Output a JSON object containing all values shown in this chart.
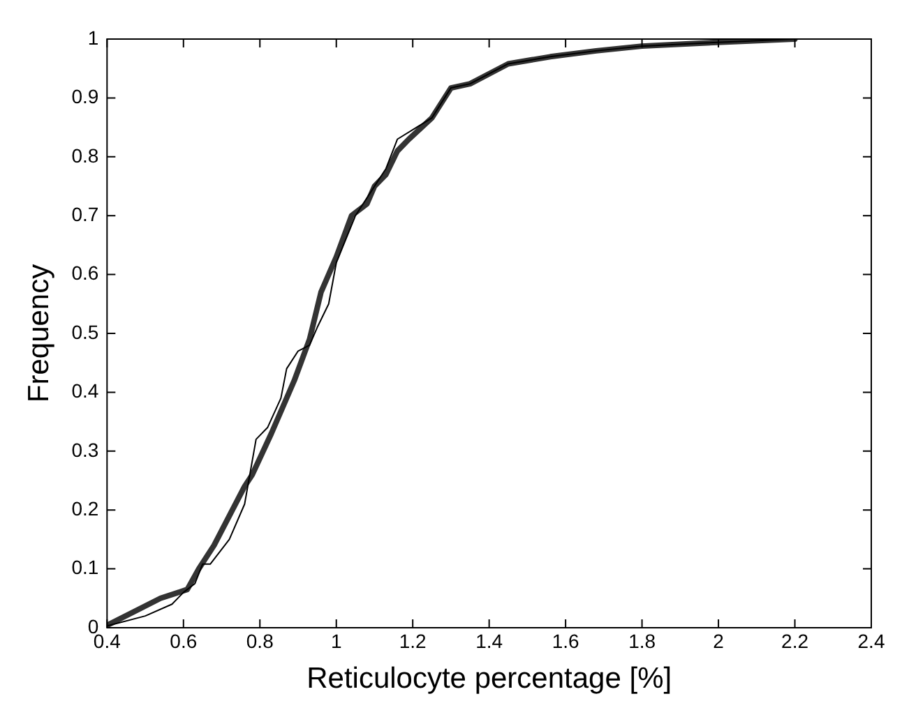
{
  "chart_data": {
    "type": "line",
    "xlabel": "Reticulocyte percentage [%]",
    "ylabel": "Frequency",
    "xlim": [
      0.4,
      2.4
    ],
    "ylim": [
      0,
      1
    ],
    "xticks": [
      0.4,
      0.6,
      0.8,
      1,
      1.2,
      1.4,
      1.6,
      1.8,
      2,
      2.2,
      2.4
    ],
    "yticks": [
      0,
      0.1,
      0.2,
      0.3,
      0.4,
      0.5,
      0.6,
      0.7,
      0.8,
      0.9,
      1
    ],
    "grid": false,
    "legend": false,
    "marker": "none",
    "line_style": "solid",
    "series": [
      {
        "color": "#333333",
        "x": [
          0.4,
          0.54,
          0.61,
          0.64,
          0.68,
          0.76,
          0.78,
          0.83,
          0.89,
          0.93,
          0.96,
          1.0,
          1.04,
          1.08,
          1.1,
          1.13,
          1.16,
          1.19,
          1.25,
          1.3,
          1.35,
          1.45,
          1.56,
          1.68,
          1.8,
          1.95,
          2.2
        ],
        "values": [
          0.004,
          0.05,
          0.065,
          0.1,
          0.14,
          0.24,
          0.26,
          0.33,
          0.42,
          0.49,
          0.57,
          0.63,
          0.7,
          0.72,
          0.75,
          0.77,
          0.81,
          0.83,
          0.866,
          0.917,
          0.924,
          0.958,
          0.97,
          0.98,
          0.988,
          0.993,
          1.0
        ]
      },
      {
        "color": "#000000",
        "x": [
          0.4,
          0.5,
          0.57,
          0.6,
          0.63,
          0.65,
          0.67,
          0.72,
          0.76,
          0.79,
          0.82,
          0.855,
          0.87,
          0.9,
          0.93,
          0.95,
          0.98,
          1.0,
          1.05,
          1.08,
          1.1,
          1.13,
          1.16,
          1.21,
          1.25,
          1.3,
          1.35,
          1.45,
          1.56,
          1.68,
          1.8,
          1.95,
          2.2
        ],
        "values": [
          0.003,
          0.02,
          0.04,
          0.06,
          0.075,
          0.108,
          0.108,
          0.15,
          0.21,
          0.32,
          0.34,
          0.39,
          0.44,
          0.47,
          0.48,
          0.51,
          0.55,
          0.62,
          0.7,
          0.73,
          0.75,
          0.78,
          0.83,
          0.85,
          0.866,
          0.917,
          0.924,
          0.958,
          0.97,
          0.98,
          0.988,
          0.993,
          1.0
        ]
      }
    ]
  }
}
